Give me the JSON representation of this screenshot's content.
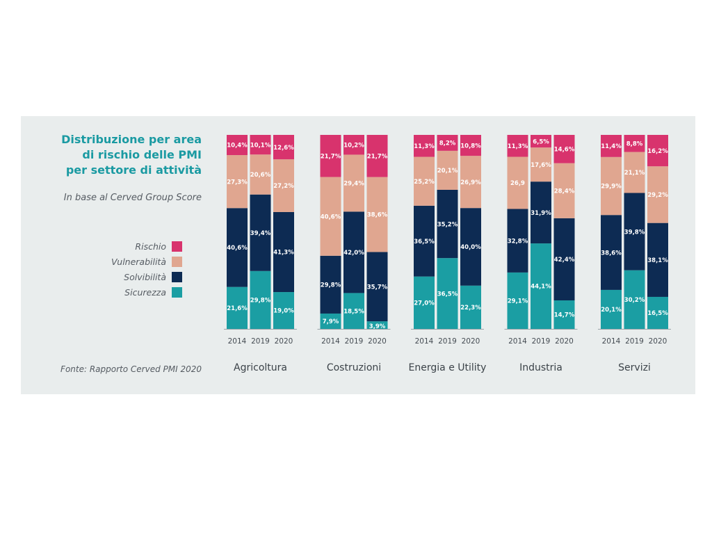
{
  "title_lines": [
    "Distribuzione per area",
    "di rischio delle PMI",
    "per settore di attività"
  ],
  "subtitle": "In base al Cerved Group Score",
  "source": "Fonte: Rapporto Cerved PMI 2020",
  "legend": [
    {
      "name": "Rischio",
      "color": "#d8336d"
    },
    {
      "name": "Vulnerabilità",
      "color": "#e0a690"
    },
    {
      "name": "Solvibilità",
      "color": "#0d2b53"
    },
    {
      "name": "Sicurezza",
      "color": "#1b9ea3"
    }
  ],
  "chart_data": {
    "type": "bar",
    "stacked": true,
    "stack_order_bottom_to_top": [
      "Sicurezza",
      "Solvibilità",
      "Vulnerabilità",
      "Rischio"
    ],
    "y_unit": "%",
    "ylim": [
      0,
      100
    ],
    "grid": false,
    "groups": [
      {
        "name": "Agricoltura",
        "bars": [
          {
            "year": "2014",
            "values": {
              "Sicurezza": 21.6,
              "Solvibilità": 40.6,
              "Vulnerabilità": 27.3,
              "Rischio": 10.4
            },
            "labels": {
              "Sicurezza": "21,6%",
              "Solvibilità": "40,6%",
              "Vulnerabilità": "27,3%",
              "Rischio": "10,4%"
            }
          },
          {
            "year": "2019",
            "values": {
              "Sicurezza": 29.8,
              "Solvibilità": 39.4,
              "Vulnerabilità": 20.6,
              "Rischio": 10.1
            },
            "labels": {
              "Sicurezza": "29,8%",
              "Solvibilità": "39,4%",
              "Vulnerabilità": "20,6%",
              "Rischio": "10,1%"
            }
          },
          {
            "year": "2020",
            "values": {
              "Sicurezza": 19.0,
              "Solvibilità": 41.3,
              "Vulnerabilità": 27.2,
              "Rischio": 12.6
            },
            "labels": {
              "Sicurezza": "19,0%",
              "Solvibilità": "41,3%",
              "Vulnerabilità": "27,2%",
              "Rischio": "12,6%"
            }
          }
        ]
      },
      {
        "name": "Costruzioni",
        "bars": [
          {
            "year": "2014",
            "values": {
              "Sicurezza": 7.9,
              "Solvibilità": 29.8,
              "Vulnerabilità": 40.6,
              "Rischio": 21.7
            },
            "labels": {
              "Sicurezza": "7,9%",
              "Solvibilità": "29,8%",
              "Vulnerabilità": "40,6%",
              "Rischio": "21,7%"
            }
          },
          {
            "year": "2019",
            "values": {
              "Sicurezza": 18.5,
              "Solvibilità": 42.0,
              "Vulnerabilità": 29.4,
              "Rischio": 10.2
            },
            "labels": {
              "Sicurezza": "18,5%",
              "Solvibilità": "42,0%",
              "Vulnerabilità": "29,4%",
              "Rischio": "10,2%"
            }
          },
          {
            "year": "2020",
            "values": {
              "Sicurezza": 3.9,
              "Solvibilità": 35.7,
              "Vulnerabilità": 38.6,
              "Rischio": 21.7
            },
            "labels": {
              "Sicurezza": "3,9%",
              "Solvibilità": "35,7%",
              "Vulnerabilità": "38,6%",
              "Rischio": "21,7%"
            }
          }
        ]
      },
      {
        "name": "Energia e Utility",
        "bars": [
          {
            "year": "2014",
            "values": {
              "Sicurezza": 27.0,
              "Solvibilità": 36.5,
              "Vulnerabilità": 25.2,
              "Rischio": 11.3
            },
            "labels": {
              "Sicurezza": "27,0%",
              "Solvibilità": "36,5%",
              "Vulnerabilità": "25,2%",
              "Rischio": "11,3%"
            }
          },
          {
            "year": "2019",
            "values": {
              "Sicurezza": 36.5,
              "Solvibilità": 35.2,
              "Vulnerabilità": 20.1,
              "Rischio": 8.2
            },
            "labels": {
              "Sicurezza": "36,5%",
              "Solvibilità": "35,2%",
              "Vulnerabilità": "20,1%",
              "Rischio": "8,2%"
            }
          },
          {
            "year": "2020",
            "values": {
              "Sicurezza": 22.3,
              "Solvibilità": 40.0,
              "Vulnerabilità": 26.9,
              "Rischio": 10.8
            },
            "labels": {
              "Sicurezza": "22,3%",
              "Solvibilità": "40,0%",
              "Vulnerabilità": "26,9%",
              "Rischio": "10,8%"
            }
          }
        ]
      },
      {
        "name": "Industria",
        "bars": [
          {
            "year": "2014",
            "values": {
              "Sicurezza": 29.1,
              "Solvibilità": 32.8,
              "Vulnerabilità": 26.9,
              "Rischio": 11.3
            },
            "labels": {
              "Sicurezza": "29,1%",
              "Solvibilità": "32,8%",
              "Vulnerabilità": "26,9",
              "Rischio": "11,3%"
            }
          },
          {
            "year": "2019",
            "values": {
              "Sicurezza": 44.1,
              "Solvibilità": 31.9,
              "Vulnerabilità": 17.6,
              "Rischio": 6.5
            },
            "labels": {
              "Sicurezza": "44,1%",
              "Solvibilità": "31,9%",
              "Vulnerabilità": "17,6%",
              "Rischio": "6,5%"
            }
          },
          {
            "year": "2020",
            "values": {
              "Sicurezza": 14.7,
              "Solvibilità": 42.4,
              "Vulnerabilità": 28.4,
              "Rischio": 14.6
            },
            "labels": {
              "Sicurezza": "14,7%",
              "Solvibilità": "42,4%",
              "Vulnerabilità": "28,4%",
              "Rischio": "14,6%"
            }
          }
        ]
      },
      {
        "name": "Servizi",
        "bars": [
          {
            "year": "2014",
            "values": {
              "Sicurezza": 20.1,
              "Solvibilità": 38.6,
              "Vulnerabilità": 29.9,
              "Rischio": 11.4
            },
            "labels": {
              "Sicurezza": "20,1%",
              "Solvibilità": "38,6%",
              "Vulnerabilità": "29,9%",
              "Rischio": "11,4%"
            }
          },
          {
            "year": "2019",
            "values": {
              "Sicurezza": 30.2,
              "Solvibilità": 39.8,
              "Vulnerabilità": 21.1,
              "Rischio": 8.8
            },
            "labels": {
              "Sicurezza": "30,2%",
              "Solvibilità": "39,8%",
              "Vulnerabilità": "21,1%",
              "Rischio": "8,8%"
            }
          },
          {
            "year": "2020",
            "values": {
              "Sicurezza": 16.5,
              "Solvibilità": 38.1,
              "Vulnerabilità": 29.2,
              "Rischio": 16.2
            },
            "labels": {
              "Sicurezza": "16,5%",
              "Solvibilità": "38,1%",
              "Vulnerabilità": "29,2%",
              "Rischio": "16,2%"
            }
          }
        ]
      }
    ]
  }
}
